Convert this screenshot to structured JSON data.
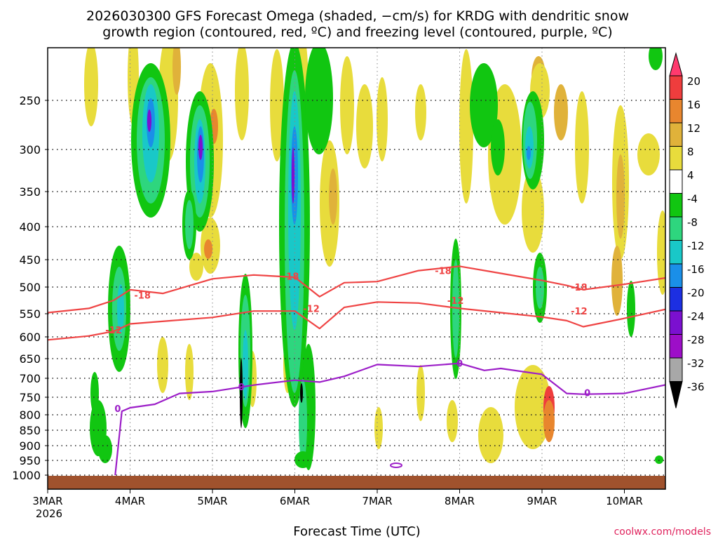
{
  "chart_data": {
    "type": "heatmap",
    "title_line1": "2026030300 GFS Forecast Omega (shaded, −cm/s) for KRDG with dendritic snow",
    "title_line2": "growth region (contoured, red, ºC) and freezing level (contoured, purple, ºC)",
    "xlabel": "Forecast Time (UTC)",
    "credit": "coolwx.com/models",
    "y_ticks": [
      "250",
      "300",
      "350",
      "400",
      "450",
      "500",
      "550",
      "600",
      "650",
      "700",
      "750",
      "800",
      "850",
      "900",
      "950",
      "1000"
    ],
    "y_values": [
      250,
      300,
      350,
      400,
      450,
      500,
      550,
      600,
      650,
      700,
      750,
      800,
      850,
      900,
      950,
      1000
    ],
    "ylim": [
      200,
      1030
    ],
    "x_ticks": [
      "3MAR",
      "4MAR",
      "5MAR",
      "6MAR",
      "7MAR",
      "8MAR",
      "9MAR",
      "10MAR"
    ],
    "x_year": "2026",
    "x_range_days": [
      0,
      7.55
    ],
    "colorbar": {
      "labels": [
        "20",
        "16",
        "12",
        "8",
        "4",
        "-4",
        "-8",
        "-12",
        "-16",
        "-20",
        "-24",
        "-28",
        "-32",
        "-36"
      ],
      "colors": [
        "#ff3a6e",
        "#ef3d3d",
        "#e8862e",
        "#e0b23a",
        "#e8dc3c",
        "#ffffff",
        "#11c611",
        "#2ed67e",
        "#19c8c8",
        "#1a8fe8",
        "#1c2fe2",
        "#7b10d0",
        "#9d0ec8",
        "#a8a8a8",
        "#000000"
      ]
    },
    "contour_labels": {
      "minus18": "-18",
      "minus12": "-12",
      "zero": "0"
    },
    "series": [
      {
        "name": "-18C (dendritic growth top)",
        "color": "#ef4444",
        "x": [
          0,
          0.5,
          0.8,
          1.0,
          1.4,
          2.0,
          2.5,
          3.0,
          3.3,
          3.6,
          4.0,
          4.5,
          5.0,
          5.5,
          6.0,
          6.3,
          6.5,
          7.0,
          7.55
        ],
        "y": [
          548,
          540,
          525,
          505,
          512,
          485,
          478,
          482,
          518,
          492,
          490,
          470,
          462,
          475,
          488,
          497,
          505,
          495,
          482
        ]
      },
      {
        "name": "-12C (dendritic growth bottom)",
        "color": "#ef4444",
        "x": [
          0,
          0.5,
          0.8,
          1.0,
          1.5,
          2.0,
          2.5,
          3.0,
          3.3,
          3.6,
          4.0,
          4.5,
          5.0,
          5.5,
          6.0,
          6.3,
          6.5,
          7.0,
          7.55
        ],
        "y": [
          607,
          598,
          588,
          572,
          565,
          558,
          545,
          545,
          582,
          538,
          528,
          530,
          540,
          548,
          557,
          565,
          578,
          560,
          540
        ]
      },
      {
        "name": "0C (freezing level)",
        "color": "#9c1ec8",
        "x": [
          0.82,
          0.9,
          1.0,
          1.3,
          1.6,
          2.0,
          2.5,
          3.0,
          3.3,
          3.6,
          4.0,
          4.5,
          5.0,
          5.3,
          5.5,
          6.0,
          6.3,
          6.5,
          7.0,
          7.55
        ],
        "y": [
          1000,
          790,
          780,
          770,
          740,
          735,
          718,
          705,
          710,
          695,
          665,
          670,
          662,
          680,
          675,
          690,
          740,
          742,
          740,
          715
        ]
      }
    ]
  }
}
